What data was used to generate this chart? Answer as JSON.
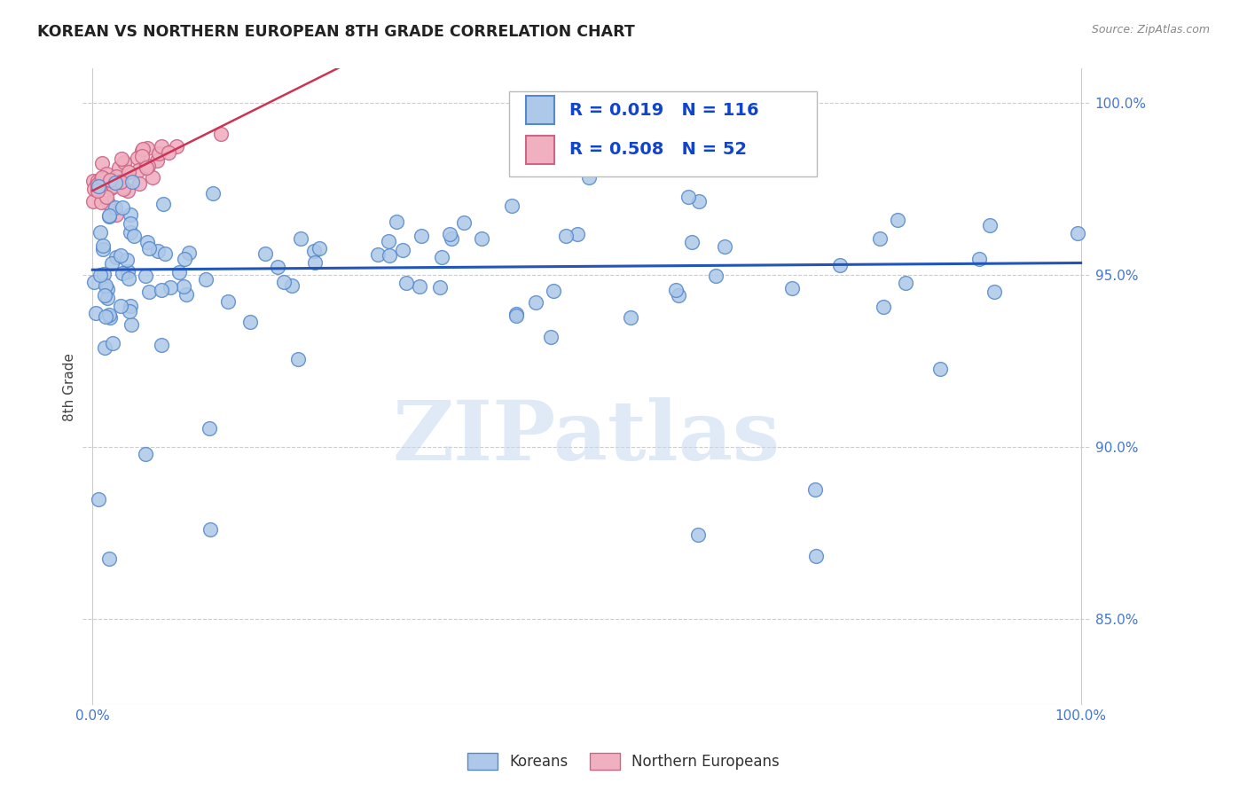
{
  "title": "KOREAN VS NORTHERN EUROPEAN 8TH GRADE CORRELATION CHART",
  "source": "Source: ZipAtlas.com",
  "ylabel": "8th Grade",
  "korean_color": "#adc8e8",
  "korean_edge": "#5588cc",
  "ne_color": "#f0b0c0",
  "ne_edge": "#cc6688",
  "trendline_korean_color": "#2255bb",
  "trendline_ne_color": "#cc3355",
  "r_korean": 0.019,
  "n_korean": 116,
  "r_ne": 0.508,
  "n_ne": 52,
  "legend_r_color": "#1144cc",
  "watermark": "ZIPatlas",
  "watermark_color": "#c8d8f0",
  "axis_label_color": "#4477cc",
  "grid_color": "#cccccc",
  "background_color": "#ffffff",
  "xlim": [
    0,
    100
  ],
  "ylim": [
    82.5,
    101.0
  ],
  "yticks": [
    85.0,
    90.0,
    95.0,
    100.0
  ]
}
